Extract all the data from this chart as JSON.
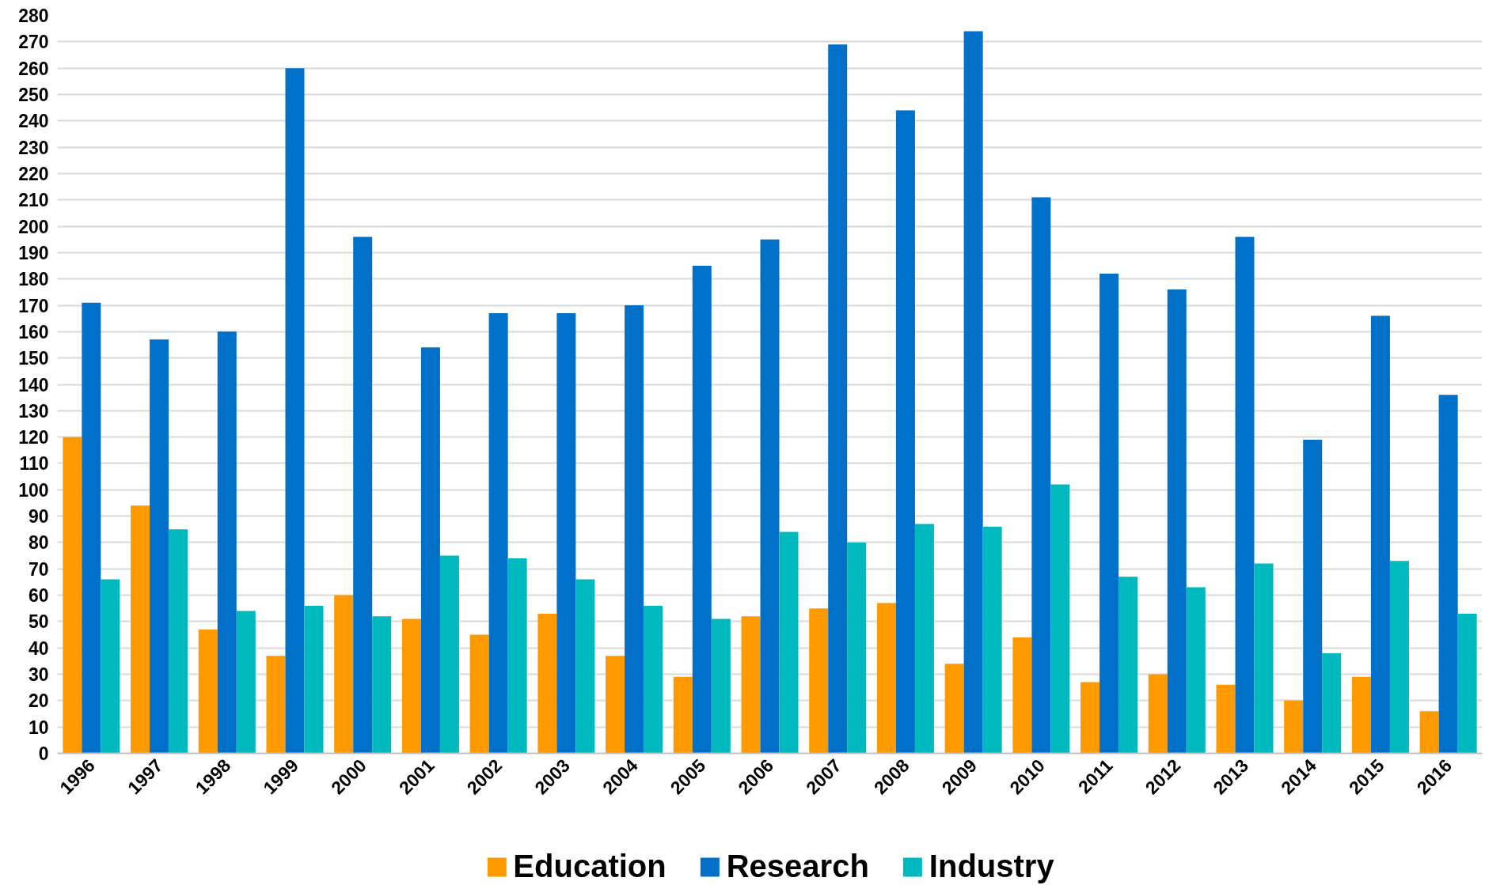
{
  "chart_data": {
    "type": "bar",
    "categories": [
      "1996",
      "1997",
      "1998",
      "1999",
      "2000",
      "2001",
      "2002",
      "2003",
      "2004",
      "2005",
      "2006",
      "2007",
      "2008",
      "2009",
      "2010",
      "2011",
      "2012",
      "2013",
      "2014",
      "2015",
      "2016"
    ],
    "series": [
      {
        "name": "Education",
        "color": "#ff9900",
        "values": [
          120,
          94,
          47,
          37,
          60,
          51,
          45,
          53,
          37,
          29,
          52,
          55,
          57,
          34,
          44,
          27,
          30,
          26,
          20,
          29,
          16
        ]
      },
      {
        "name": "Research",
        "color": "#0070c8",
        "values": [
          171,
          157,
          160,
          260,
          196,
          154,
          167,
          167,
          170,
          185,
          195,
          269,
          244,
          274,
          211,
          182,
          176,
          196,
          119,
          166,
          136
        ]
      },
      {
        "name": "Industry",
        "color": "#00b9be",
        "values": [
          66,
          85,
          54,
          56,
          52,
          75,
          74,
          66,
          56,
          51,
          84,
          80,
          87,
          86,
          102,
          67,
          63,
          72,
          38,
          73,
          53
        ]
      }
    ],
    "ylim": [
      0,
      280
    ],
    "yticks": [
      0,
      10,
      20,
      30,
      40,
      50,
      60,
      70,
      80,
      90,
      100,
      110,
      120,
      130,
      140,
      150,
      160,
      170,
      180,
      190,
      200,
      210,
      220,
      230,
      240,
      250,
      260,
      270,
      280
    ],
    "grid": "y",
    "legend": "bottom"
  }
}
